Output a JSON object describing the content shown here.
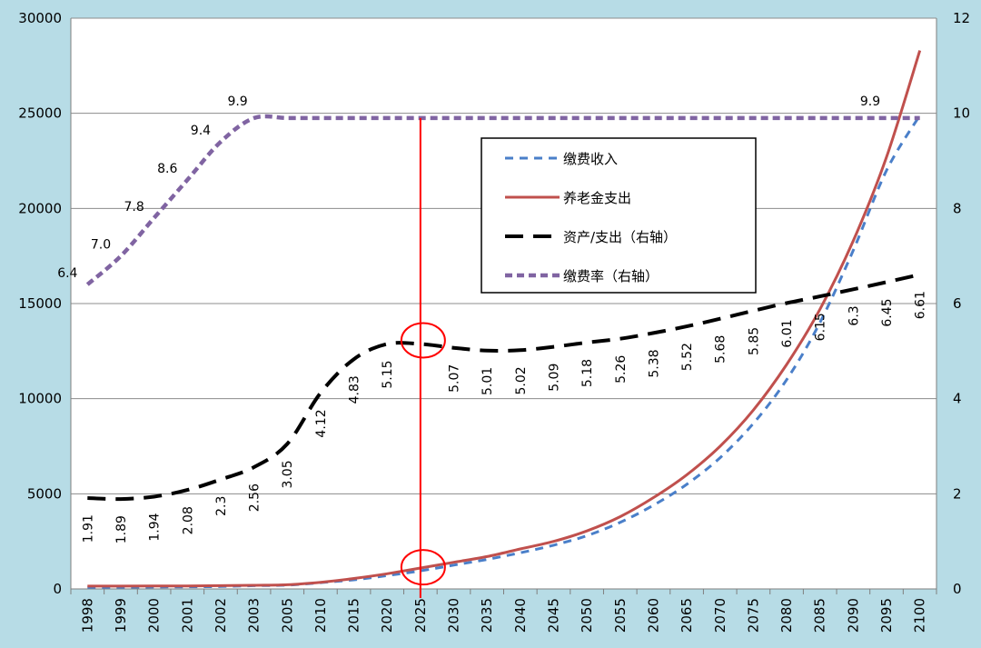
{
  "chart_data": {
    "type": "line",
    "categories": [
      "1998",
      "1999",
      "2000",
      "2001",
      "2002",
      "2003",
      "2005",
      "2010",
      "2015",
      "2020",
      "2025",
      "2030",
      "2035",
      "2040",
      "2045",
      "2050",
      "2055",
      "2060",
      "2065",
      "2070",
      "2075",
      "2080",
      "2085",
      "2090",
      "2095",
      "2100"
    ],
    "y_left": {
      "range": [
        0,
        30000
      ],
      "ticks": [
        "0",
        "5000",
        "10000",
        "15000",
        "20000",
        "25000",
        "30000"
      ]
    },
    "y_right": {
      "range": [
        0,
        12
      ],
      "ticks": [
        "0",
        "2",
        "4",
        "6",
        "8",
        "10",
        "12"
      ]
    },
    "grid": true,
    "legend_position": "center-top",
    "series": [
      {
        "name": "缴费收入",
        "axis": "left",
        "style": "dashed",
        "color": "#4a7fc9",
        "values": [
          80,
          90,
          100,
          110,
          130,
          170,
          200,
          330,
          480,
          700,
          950,
          1250,
          1550,
          1900,
          2300,
          2800,
          3500,
          4400,
          5500,
          6900,
          8700,
          11000,
          14000,
          17800,
          22000,
          24900
        ]
      },
      {
        "name": "养老金支出",
        "axis": "left",
        "style": "solid",
        "color": "#c0504d",
        "values": [
          150,
          150,
          160,
          160,
          170,
          190,
          220,
          350,
          550,
          800,
          1100,
          1400,
          1700,
          2100,
          2500,
          3050,
          3800,
          4800,
          6000,
          7500,
          9400,
          11800,
          14700,
          18300,
          22700,
          28300
        ]
      },
      {
        "name": "资产/支出（右轴）",
        "axis": "right",
        "style": "long-dash",
        "color": "#000000",
        "values": [
          1.91,
          1.89,
          1.94,
          2.08,
          2.3,
          2.56,
          3.05,
          4.12,
          4.83,
          5.15,
          5.15,
          5.07,
          5.01,
          5.02,
          5.09,
          5.18,
          5.26,
          5.38,
          5.52,
          5.68,
          5.85,
          6.01,
          6.15,
          6.3,
          6.45,
          6.61
        ],
        "labels": [
          "1.91",
          "1.89",
          "1.94",
          "2.08",
          "2.3",
          "2.56",
          "3.05",
          "4.12",
          "4.83",
          "5.15",
          "",
          "5.07",
          "5.01",
          "5.02",
          "5.09",
          "5.18",
          "5.26",
          "5.38",
          "5.52",
          "5.68",
          "5.85",
          "6.01",
          "6.15",
          "6.3",
          "6.45",
          "6.61"
        ]
      },
      {
        "name": "缴费率（右轴）",
        "axis": "right",
        "style": "dotted",
        "color": "#8064a2",
        "values": [
          6.4,
          7.0,
          7.8,
          8.6,
          9.4,
          9.9,
          9.9,
          9.9,
          9.9,
          9.9,
          9.9,
          9.9,
          9.9,
          9.9,
          9.9,
          9.9,
          9.9,
          9.9,
          9.9,
          9.9,
          9.9,
          9.9,
          9.9,
          9.9,
          9.9,
          9.9
        ],
        "labels": [
          "6.4",
          "7.0",
          "7.8",
          "8.6",
          "9.4",
          "9.9",
          "",
          "",
          "",
          "",
          "",
          "",
          "",
          "",
          "",
          "",
          "",
          "",
          "",
          "",
          "",
          "",
          "",
          "",
          "9.9",
          ""
        ]
      }
    ],
    "annotations": {
      "vertical_line_at": "2025",
      "vertical_line_color": "#ff0000",
      "circles": [
        {
          "category": "2025",
          "axis": "right",
          "value": 5.15
        },
        {
          "category": "2025",
          "axis": "left",
          "value": 950
        }
      ]
    }
  }
}
